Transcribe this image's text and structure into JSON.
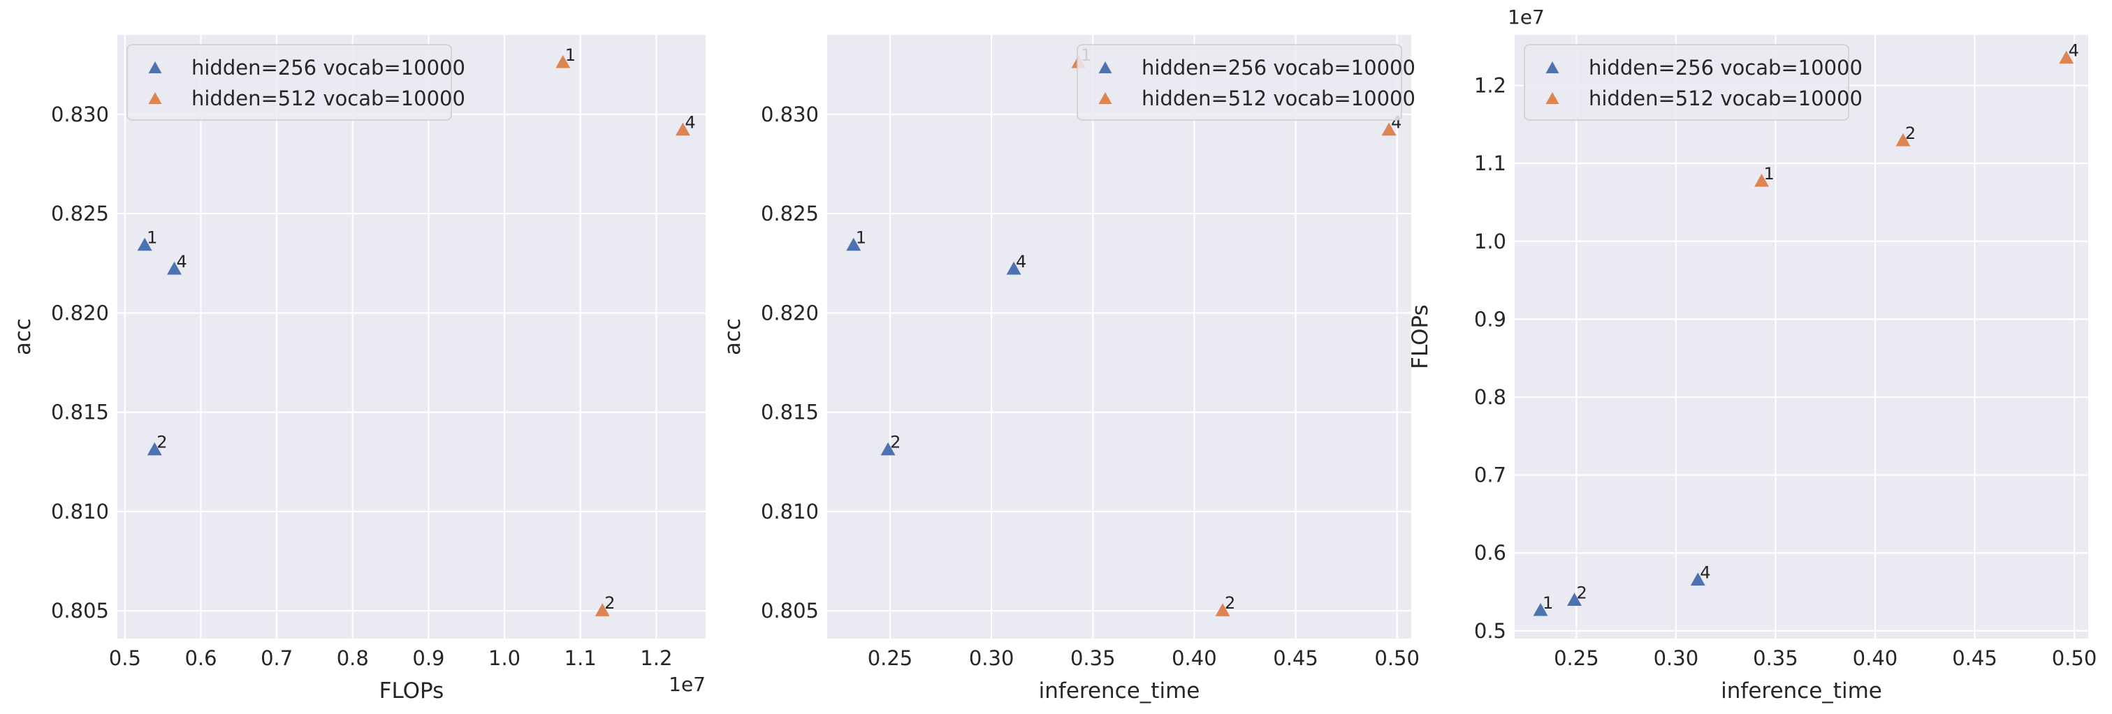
{
  "chart_data": [
    {
      "type": "scatter",
      "xlabel": "FLOPs",
      "ylabel": "acc",
      "x_offset_label": "1e7",
      "y_offset_label": "",
      "xlim": [
        0.49,
        1.265
      ],
      "ylim": [
        0.8036,
        0.834
      ],
      "x_ticks": [
        0.5,
        0.6,
        0.7,
        0.8,
        0.9,
        1.0,
        1.1,
        1.2
      ],
      "y_ticks": [
        0.805,
        0.81,
        0.815,
        0.82,
        0.825,
        0.83
      ],
      "x_tick_decimals": 1,
      "y_tick_decimals": 3,
      "legend": "top-left",
      "grid": true,
      "series": [
        {
          "name": "hidden=256 vocab=10000",
          "color": "#4c72b0",
          "marker": "triangle",
          "points": [
            {
              "x": 0.526,
              "y": 0.8234,
              "label": "1"
            },
            {
              "x": 0.539,
              "y": 0.8131,
              "label": "2"
            },
            {
              "x": 0.565,
              "y": 0.8222,
              "label": "4"
            }
          ]
        },
        {
          "name": "hidden=512 vocab=10000",
          "color": "#dd8452",
          "marker": "triangle",
          "points": [
            {
              "x": 1.077,
              "y": 0.8326,
              "label": "1"
            },
            {
              "x": 1.129,
              "y": 0.805,
              "label": "2"
            },
            {
              "x": 1.235,
              "y": 0.8292,
              "label": "4"
            }
          ]
        }
      ]
    },
    {
      "type": "scatter",
      "xlabel": "inference_time",
      "ylabel": "acc",
      "x_offset_label": "",
      "y_offset_label": "",
      "xlim": [
        0.219,
        0.507
      ],
      "ylim": [
        0.8036,
        0.834
      ],
      "x_ticks": [
        0.25,
        0.3,
        0.35,
        0.4,
        0.45,
        0.5
      ],
      "y_ticks": [
        0.805,
        0.81,
        0.815,
        0.82,
        0.825,
        0.83
      ],
      "x_tick_decimals": 2,
      "y_tick_decimals": 3,
      "legend": "top-right",
      "grid": true,
      "series": [
        {
          "name": "hidden=256 vocab=10000",
          "color": "#4c72b0",
          "marker": "triangle",
          "points": [
            {
              "x": 0.232,
              "y": 0.8234,
              "label": "1"
            },
            {
              "x": 0.249,
              "y": 0.8131,
              "label": "2"
            },
            {
              "x": 0.311,
              "y": 0.8222,
              "label": "4"
            }
          ]
        },
        {
          "name": "hidden=512 vocab=10000",
          "color": "#dd8452",
          "marker": "triangle",
          "points": [
            {
              "x": 0.343,
              "y": 0.8326,
              "label": "1"
            },
            {
              "x": 0.414,
              "y": 0.805,
              "label": "2"
            },
            {
              "x": 0.496,
              "y": 0.8292,
              "label": "4"
            }
          ]
        }
      ]
    },
    {
      "type": "scatter",
      "xlabel": "inference_time",
      "ylabel": "FLOPs",
      "x_offset_label": "",
      "y_offset_label": "1e7",
      "xlim": [
        0.219,
        0.507
      ],
      "ylim": [
        0.49,
        1.265
      ],
      "x_ticks": [
        0.25,
        0.3,
        0.35,
        0.4,
        0.45,
        0.5
      ],
      "y_ticks": [
        0.5,
        0.6,
        0.7,
        0.8,
        0.9,
        1.0,
        1.1,
        1.2
      ],
      "x_tick_decimals": 2,
      "y_tick_decimals": 1,
      "legend": "top-left",
      "grid": true,
      "series": [
        {
          "name": "hidden=256 vocab=10000",
          "color": "#4c72b0",
          "marker": "triangle",
          "points": [
            {
              "x": 0.232,
              "y": 0.526,
              "label": "1"
            },
            {
              "x": 0.249,
              "y": 0.539,
              "label": "2"
            },
            {
              "x": 0.311,
              "y": 0.565,
              "label": "4"
            }
          ]
        },
        {
          "name": "hidden=512 vocab=10000",
          "color": "#dd8452",
          "marker": "triangle",
          "points": [
            {
              "x": 0.343,
              "y": 1.077,
              "label": "1"
            },
            {
              "x": 0.414,
              "y": 1.129,
              "label": "2"
            },
            {
              "x": 0.496,
              "y": 1.235,
              "label": "4"
            }
          ]
        }
      ]
    }
  ]
}
